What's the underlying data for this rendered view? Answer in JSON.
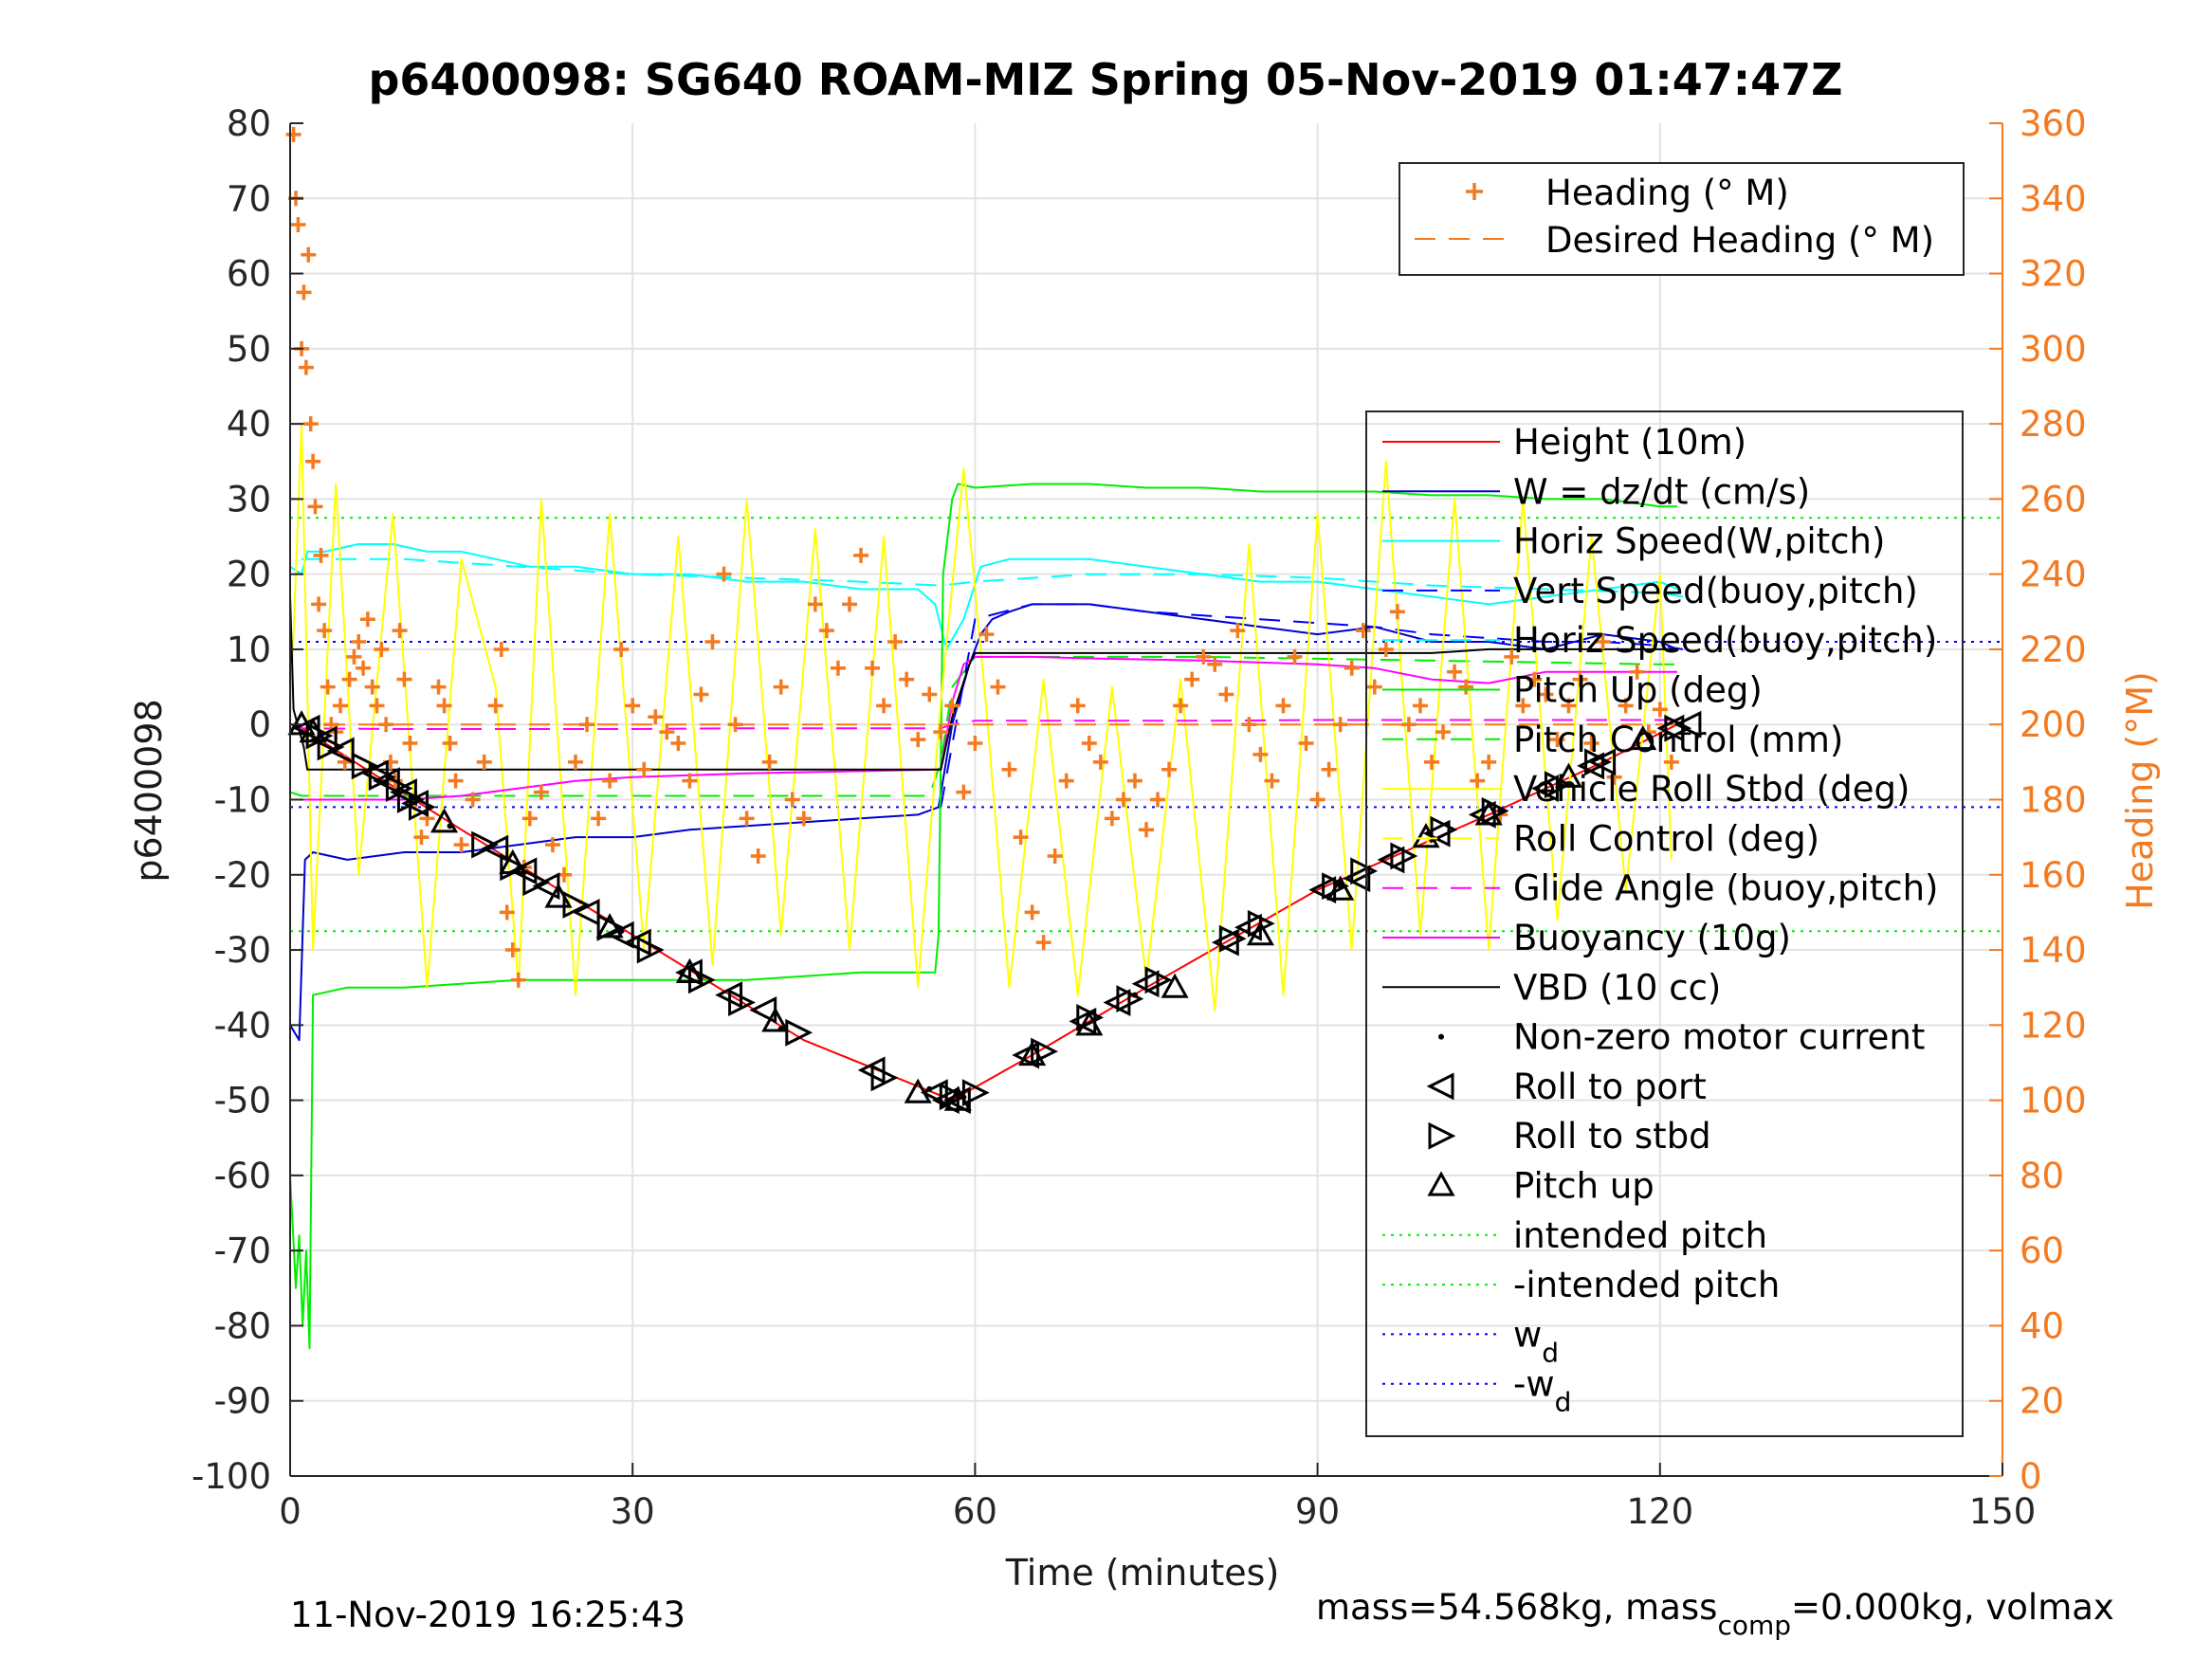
{
  "chart_data": {
    "type": "line",
    "title": "p6400098: SG640 ROAM-MIZ Spring 05-Nov-2019 01:47:47Z",
    "xlabel": "Time (minutes)",
    "ylabel": "p6400098",
    "y2label": "Heading (°M)",
    "xlim": [
      0,
      150
    ],
    "ylim": [
      -100,
      80
    ],
    "y2lim": [
      0,
      360
    ],
    "xticks": [
      0,
      30,
      60,
      90,
      120,
      150
    ],
    "yticks": [
      80,
      70,
      60,
      50,
      40,
      30,
      20,
      10,
      0,
      -10,
      -20,
      -30,
      -40,
      -50,
      -60,
      -70,
      -80,
      -90,
      -100
    ],
    "y2ticks": [
      360,
      340,
      320,
      300,
      280,
      260,
      240,
      220,
      200,
      180,
      160,
      140,
      120,
      100,
      80,
      60,
      40,
      20,
      0
    ],
    "grid": true,
    "legend_placement": [
      "top-right",
      "right"
    ],
    "colors": {
      "heading": "#f47a20",
      "height": "#ff0000",
      "w": "#0000cc",
      "horiz": "#00ffff",
      "pitch": "#00ee00",
      "roll": "#ffff00",
      "glide": "#ff00ff",
      "black": "#000000",
      "wd": "#0000ff"
    },
    "series": [
      {
        "name": "Height (10m)",
        "style": "solid",
        "color": "#ff0000",
        "x": [
          0,
          1,
          15,
          30,
          45,
          58,
          65,
          75,
          90,
          105,
          115,
          121.5
        ],
        "y": [
          0,
          -0.5,
          -14,
          -28,
          -42,
          -50,
          -44,
          -35,
          -22,
          -12,
          -5,
          0
        ]
      },
      {
        "name": "W = dz/dt (cm/s)",
        "style": "solid",
        "color": "#0000cc",
        "x": [
          0,
          0.8,
          1.3,
          2,
          5,
          10,
          15,
          20,
          25,
          30,
          35,
          40,
          45,
          50,
          55,
          56.8,
          58,
          59.5,
          60.5,
          61.5,
          63,
          65,
          70,
          75,
          80,
          85,
          90,
          95,
          100,
          105,
          110,
          115,
          120,
          121.5
        ],
        "y": [
          -40,
          -42,
          -18,
          -17,
          -18,
          -17,
          -17,
          -16,
          -15,
          -15,
          -14,
          -13.5,
          -13,
          -12.5,
          -12,
          -11,
          0,
          8,
          12,
          14,
          15,
          16,
          16,
          15,
          14,
          13,
          12,
          13,
          11,
          11,
          10,
          12,
          11,
          10
        ]
      },
      {
        "name": "Horiz Speed(W,pitch)",
        "style": "solid",
        "color": "#00ffff",
        "x": [
          0,
          1,
          1.5,
          3,
          6,
          9,
          12,
          15,
          18,
          21,
          25,
          30,
          35,
          40,
          45,
          50,
          55,
          56.5,
          57.5,
          59,
          60.5,
          63,
          66,
          70,
          75,
          80,
          85,
          90,
          95,
          100,
          105,
          110,
          115,
          120,
          121.5
        ],
        "y": [
          21,
          20,
          23,
          23,
          24,
          24,
          23,
          23,
          22,
          21,
          21,
          20,
          20,
          19,
          19,
          18,
          18,
          16,
          10,
          14,
          21,
          22,
          22,
          22,
          21,
          20,
          19,
          19,
          18,
          17,
          16,
          17,
          18,
          19,
          18
        ]
      },
      {
        "name": "Vert Speed(buoy,pitch)",
        "style": "dashed",
        "color": "#0000ff",
        "x": [
          57,
          60,
          65,
          70,
          75,
          80,
          85,
          90,
          95,
          100,
          105,
          110,
          115,
          120,
          122
        ],
        "y": [
          -11,
          14,
          16,
          16,
          15,
          14.5,
          14,
          13.5,
          13,
          12,
          11.5,
          11,
          11,
          10.5,
          10
        ]
      },
      {
        "name": "Horiz Speed(buoy,pitch)",
        "style": "dashed",
        "color": "#00ffff",
        "x": [
          1,
          10,
          20,
          30,
          40,
          50,
          57,
          60,
          70,
          80,
          90,
          100,
          110,
          120,
          122
        ],
        "y": [
          22,
          22,
          21,
          20,
          19.5,
          19,
          18.5,
          19,
          20,
          20,
          19.5,
          18.5,
          18,
          17.5,
          17
        ]
      },
      {
        "name": "Pitch Up (deg)",
        "style": "solid",
        "color": "#00ee00",
        "x": [
          0,
          0.5,
          0.8,
          1.1,
          1.4,
          1.7,
          2,
          5,
          10,
          15,
          20,
          25,
          30,
          35,
          40,
          45,
          50,
          55,
          56.5,
          56.8,
          57.2,
          58,
          58.5,
          60,
          65,
          70,
          75,
          80,
          85,
          90,
          95,
          100,
          105,
          110,
          115,
          120,
          121.5
        ],
        "y": [
          -60,
          -75,
          -68,
          -80,
          -70,
          -83,
          -36,
          -35,
          -35,
          -34.5,
          -34,
          -34,
          -34,
          -34,
          -34,
          -33.5,
          -33,
          -33,
          -33,
          -28,
          20,
          30,
          32,
          31.5,
          32,
          32,
          31.5,
          31.5,
          31,
          31,
          31,
          30.5,
          30.5,
          30,
          30,
          29,
          29
        ]
      },
      {
        "name": "Pitch Control (mm)",
        "style": "dashed",
        "color": "#00ee00",
        "x": [
          0,
          1,
          20,
          40,
          56,
          57,
          58,
          60,
          80,
          100,
          120,
          121.5
        ],
        "y": [
          -9,
          -9.5,
          -9.5,
          -9.5,
          -9.5,
          -5,
          5,
          9,
          9,
          8.5,
          8,
          8
        ]
      },
      {
        "name": "Vehicle Roll Stbd (deg)",
        "style": "solid",
        "color": "#ffff00",
        "x": [
          0,
          1,
          2,
          4,
          6,
          9,
          12,
          15,
          18,
          20,
          22,
          25,
          28,
          31,
          34,
          37,
          40,
          43,
          46,
          49,
          52,
          55,
          57,
          59,
          61,
          63,
          66,
          69,
          72,
          75,
          78,
          81,
          84,
          87,
          90,
          93,
          96,
          99,
          102,
          105,
          108,
          111,
          114,
          117,
          120,
          121
        ],
        "y": [
          0,
          40,
          -30,
          32,
          -20,
          28,
          -35,
          22,
          5,
          -35,
          30,
          -36,
          28,
          -30,
          25,
          -32,
          30,
          -28,
          26,
          -30,
          25,
          -35,
          3,
          34,
          2,
          -35,
          6,
          -36,
          5,
          -34,
          6,
          -38,
          24,
          -36,
          28,
          -30,
          35,
          -28,
          30,
          -30,
          30,
          -26,
          25,
          -22,
          20,
          -18
        ]
      },
      {
        "name": "Roll Control (deg)",
        "style": "dashed",
        "color": "#ffff00",
        "x": [
          0,
          20,
          40,
          55,
          58,
          60,
          80,
          100,
          115,
          121.5
        ],
        "y": [
          0,
          0,
          0,
          0,
          0,
          0,
          0,
          0,
          0,
          0
        ]
      },
      {
        "name": "Glide Angle (buoy,pitch)",
        "style": "dashed",
        "color": "#ff00ff",
        "x": [
          0,
          10,
          20,
          30,
          40,
          50,
          57,
          58,
          60,
          70,
          80,
          90,
          100,
          110,
          120,
          121.5
        ],
        "y": [
          -0.5,
          -0.6,
          -0.6,
          -0.6,
          -0.5,
          -0.5,
          -0.5,
          0,
          0.5,
          0.5,
          0.5,
          0.6,
          0.6,
          0.6,
          0.6,
          0.6
        ]
      },
      {
        "name": "Buoyancy (10g)",
        "style": "solid",
        "color": "#ff00ff",
        "x": [
          0,
          1,
          10,
          15,
          20,
          25,
          30,
          40,
          50,
          57,
          58,
          59,
          60,
          65,
          70,
          80,
          90,
          95,
          100,
          105,
          110,
          121.5
        ],
        "y": [
          -10,
          -10,
          -10,
          -9.5,
          -8.5,
          -7.5,
          -7,
          -6.5,
          -6.2,
          -6,
          3,
          8,
          9,
          9,
          8.8,
          8.5,
          8,
          7.5,
          6,
          5.5,
          7,
          7
        ]
      },
      {
        "name": "VBD (10 cc)",
        "style": "solid",
        "color": "#000000",
        "x": [
          0,
          0.3,
          1.2,
          1.5,
          10,
          20,
          30,
          40,
          50,
          57,
          58,
          59.5,
          60,
          70,
          80,
          90,
          100,
          105,
          110,
          121.5
        ],
        "y": [
          17,
          2,
          -3,
          -6,
          -6,
          -6,
          -6,
          -6,
          -6,
          -6,
          1,
          8,
          9.5,
          9.5,
          9.5,
          9.5,
          9.5,
          10,
          10,
          10
        ]
      }
    ],
    "thresholds": [
      {
        "name": "intended pitch",
        "y": 27.5,
        "color": "#00ee00"
      },
      {
        "name": "-intended pitch",
        "y": -27.5,
        "color": "#00ee00"
      },
      {
        "name": "w_d",
        "y": 11,
        "color": "#0000ff"
      },
      {
        "name": "-w_d",
        "y": -11,
        "color": "#0000ff"
      }
    ],
    "markers": {
      "Roll to port": {
        "x": [
          1.5,
          3,
          4.5,
          7.5,
          8.5,
          10,
          11,
          18,
          20.5,
          22.5,
          26,
          29,
          30.5,
          35,
          38.5,
          41.5,
          51,
          56.5,
          57.5,
          58.5,
          64.5,
          69.5,
          72.5,
          75,
          82,
          84,
          90.5,
          93.5,
          96.5,
          100.5,
          104.5,
          110,
          114,
          115,
          121,
          122.5
        ],
        "y": [
          -0.5,
          -2,
          -3.5,
          -6.5,
          -7.5,
          -9,
          -10.5,
          -16.5,
          -19.5,
          -21.5,
          -25,
          -28,
          -29,
          -33,
          -36,
          -38,
          -46,
          -49,
          -50,
          -50,
          -44,
          -39.5,
          -37,
          -34.5,
          -29,
          -27,
          -22,
          -20.5,
          -18,
          -14.5,
          -12,
          -8.5,
          -5.5,
          -5,
          -0.5,
          0
        ]
      },
      "Roll to stbd": {
        "x": [
          2.5,
          3.5,
          6.5,
          8,
          9.5,
          10.5,
          11.5,
          17,
          19.5,
          21.5,
          25,
          28,
          31.5,
          36,
          39.5,
          44.5,
          52,
          58,
          60,
          66,
          70,
          73.5,
          76,
          82.5,
          85,
          91.5,
          94,
          97.5,
          101,
          105.5,
          111,
          114.5,
          121.5
        ],
        "y": [
          -1.5,
          -3,
          -5.5,
          -7,
          -8.5,
          -10,
          -11,
          -16,
          -19,
          -21,
          -24,
          -27,
          -30,
          -34,
          -37,
          -41,
          -47,
          -49.5,
          -49,
          -43.5,
          -39,
          -36.5,
          -34,
          -28.5,
          -26.5,
          -21.5,
          -19.5,
          -17.5,
          -14,
          -11.5,
          -8,
          -5,
          -0.5
        ]
      },
      "Pitch up": {
        "x": [
          1,
          2,
          13.5,
          19.5,
          23.5,
          28,
          35,
          42.5,
          55,
          58.5,
          65,
          70,
          77.5,
          85,
          92,
          99.5,
          105,
          112,
          118.5
        ],
        "y": [
          0,
          -1,
          -13,
          -18.5,
          -23,
          -27,
          -33,
          -39.5,
          -49,
          -50,
          -44,
          -40,
          -35,
          -28,
          -22,
          -15,
          -12,
          -7,
          -2
        ]
      },
      "Non-zero motor current": {
        "x": [
          0.5,
          14,
          20,
          29,
          43,
          56,
          59,
          74,
          92,
          106,
          119
        ],
        "y": [
          -0.3,
          -13.5,
          -19.2,
          -27.5,
          -40.5,
          -48.5,
          -49.6,
          -36,
          -21.5,
          -11.5,
          -1.5
        ]
      }
    },
    "heading": {
      "name": "Heading (° M)",
      "axis": "right",
      "x": [
        0.3,
        0.5,
        0.7,
        1,
        1.2,
        1.4,
        1.6,
        1.8,
        2,
        2.2,
        2.5,
        2.7,
        3,
        3.3,
        3.6,
        4,
        4.4,
        4.8,
        5.2,
        5.6,
        6,
        6.4,
        6.8,
        7.2,
        7.6,
        8,
        8.4,
        8.8,
        9.2,
        9.6,
        10,
        10.5,
        11,
        11.5,
        12,
        13,
        13.5,
        14,
        14.5,
        15,
        16,
        17,
        18,
        18.5,
        19,
        19.5,
        20,
        20.5,
        21,
        22,
        23,
        24,
        25,
        26,
        27,
        28,
        29,
        30,
        31,
        32,
        33,
        34,
        35,
        36,
        37,
        38,
        39,
        40,
        41,
        42,
        43,
        44,
        45,
        46,
        47,
        48,
        49,
        50,
        51,
        52,
        53,
        54,
        55,
        56,
        57,
        58,
        59,
        60,
        61,
        62,
        63,
        64,
        65,
        66,
        67,
        68,
        69,
        70,
        71,
        72,
        73,
        74,
        75,
        76,
        77,
        78,
        79,
        80,
        81,
        82,
        83,
        84,
        85,
        86,
        87,
        88,
        89,
        90,
        91,
        92,
        93,
        94,
        95,
        96,
        97,
        98,
        99,
        100,
        101,
        102,
        103,
        104,
        105,
        106,
        107,
        108,
        109,
        110,
        111,
        112,
        113,
        114,
        115,
        116,
        117,
        118,
        119,
        120,
        121
      ],
      "y": [
        357,
        340,
        333,
        300,
        315,
        295,
        325,
        280,
        270,
        258,
        232,
        245,
        225,
        210,
        200,
        198,
        205,
        190,
        212,
        218,
        222,
        215,
        228,
        210,
        205,
        220,
        200,
        190,
        185,
        225,
        212,
        195,
        180,
        170,
        175,
        210,
        205,
        195,
        185,
        168,
        180,
        190,
        205,
        220,
        150,
        140,
        132,
        162,
        175,
        182,
        168,
        160,
        190,
        200,
        175,
        185,
        220,
        205,
        188,
        202,
        198,
        195,
        185,
        208,
        222,
        240,
        200,
        175,
        165,
        190,
        210,
        180,
        175,
        232,
        225,
        215,
        232,
        245,
        215,
        205,
        222,
        212,
        196,
        208,
        198,
        205,
        182,
        195,
        224,
        210,
        188,
        170,
        150,
        142,
        165,
        185,
        205,
        195,
        190,
        175,
        180,
        185,
        172,
        180,
        188,
        205,
        212,
        218,
        216,
        208,
        225,
        200,
        192,
        185,
        205,
        218,
        195,
        180,
        188,
        200,
        215,
        225,
        210,
        220,
        230,
        200,
        205,
        190,
        198,
        214,
        210,
        185,
        190,
        176,
        218,
        205,
        212,
        208,
        196,
        205,
        212,
        195,
        222,
        186,
        205,
        214,
        198,
        204,
        190
      ]
    },
    "desired_heading": {
      "name": "Desired Heading (° M)",
      "axis": "right",
      "x": [
        0,
        121.5
      ],
      "y": [
        200,
        200
      ]
    },
    "legend1": [
      "Heading (° M)",
      "Desired Heading (° M)"
    ],
    "legend2": [
      "Height (10m)",
      "W = dz/dt (cm/s)",
      "Horiz Speed(W,pitch)",
      "Vert Speed(buoy,pitch)",
      "Horiz Speed(buoy,pitch)",
      "Pitch Up (deg)",
      "Pitch Control (mm)",
      "Vehicle Roll Stbd (deg)",
      "Roll Control (deg)",
      "Glide Angle (buoy,pitch)",
      "Buoyancy (10g)",
      "VBD (10 cc)",
      "Non-zero motor current",
      "Roll to port",
      "Roll to stbd",
      "Pitch up",
      "intended pitch",
      "-intended pitch",
      "w",
      "-w"
    ],
    "legend_subscript": "d"
  },
  "footer": {
    "timestamp": "11-Nov-2019 16:25:43",
    "mass_prefix": "mass=54.568kg, mass",
    "mass_sub": "comp",
    "mass_suffix": "=0.000kg, volmax"
  }
}
